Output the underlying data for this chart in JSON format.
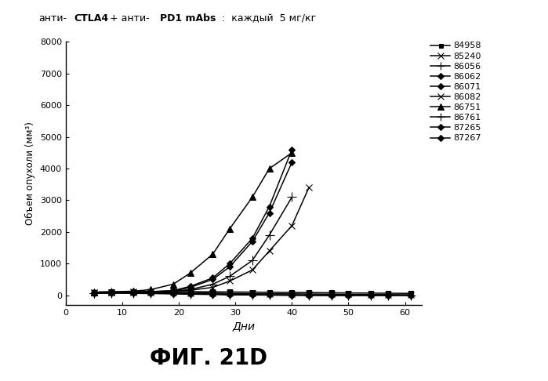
{
  "title_parts": [
    {
      "text": "анти-CTLA4 + анти- PD1 mAbs:  каждый  5 мг/кг",
      "bold": false
    }
  ],
  "xlabel": "Дни",
  "ylabel": "Объем опухоли (мм³)",
  "figure_label": "ФИГ. 21D",
  "xlim": [
    0,
    63
  ],
  "ylim": [
    -300,
    8000
  ],
  "xticks": [
    0,
    10,
    20,
    30,
    40,
    50,
    60
  ],
  "yticks": [
    0,
    1000,
    2000,
    3000,
    4000,
    5000,
    6000,
    7000,
    8000
  ],
  "series": [
    {
      "label": "84958",
      "marker": "s",
      "x": [
        5,
        8,
        12,
        15,
        19,
        22,
        26,
        29,
        33,
        36,
        40,
        43,
        47,
        50,
        54,
        57,
        61
      ],
      "y": [
        100,
        110,
        105,
        115,
        120,
        115,
        110,
        105,
        100,
        95,
        90,
        85,
        80,
        75,
        70,
        65,
        60
      ]
    },
    {
      "label": "85240",
      "marker": "x",
      "x": [
        5,
        8,
        12,
        15,
        19,
        22,
        26,
        29,
        33,
        36,
        40,
        43,
        47,
        50,
        54,
        57,
        61
      ],
      "y": [
        80,
        90,
        85,
        90,
        80,
        75,
        70,
        60,
        55,
        50,
        45,
        40,
        35,
        30,
        25,
        20,
        15
      ]
    },
    {
      "label": "86056",
      "marker": "+",
      "x": [
        5,
        8,
        12,
        15,
        19,
        22,
        26,
        29,
        33,
        36,
        40
      ],
      "y": [
        60,
        70,
        80,
        100,
        120,
        180,
        350,
        600,
        1100,
        1900,
        3100
      ]
    },
    {
      "label": "86062",
      "marker": "D",
      "x": [
        5,
        8,
        12,
        15,
        19,
        22,
        26,
        29,
        33,
        36,
        40
      ],
      "y": [
        80,
        90,
        100,
        110,
        150,
        280,
        550,
        1000,
        1800,
        2800,
        4600
      ]
    },
    {
      "label": "86071",
      "marker": "D",
      "x": [
        5,
        8,
        12,
        15,
        19,
        22,
        26,
        29,
        33,
        36,
        40
      ],
      "y": [
        70,
        85,
        95,
        105,
        130,
        250,
        500,
        900,
        1700,
        2600,
        4200
      ]
    },
    {
      "label": "86082",
      "marker": "x",
      "x": [
        5,
        8,
        12,
        15,
        19,
        22,
        26,
        29,
        33,
        36,
        40,
        43
      ],
      "y": [
        90,
        100,
        110,
        120,
        140,
        160,
        250,
        450,
        800,
        1400,
        2200,
        3400
      ]
    },
    {
      "label": "86751",
      "marker": "^",
      "x": [
        5,
        8,
        12,
        15,
        19,
        22,
        26,
        29,
        33,
        36,
        40
      ],
      "y": [
        100,
        110,
        130,
        180,
        350,
        700,
        1300,
        2100,
        3100,
        4000,
        4500
      ]
    },
    {
      "label": "86761",
      "marker": "+",
      "x": [
        5,
        8,
        12,
        15,
        19,
        22,
        26,
        29,
        33,
        36,
        40,
        43,
        47,
        50,
        54,
        57,
        61
      ],
      "y": [
        70,
        80,
        70,
        65,
        55,
        45,
        35,
        25,
        15,
        10,
        5,
        2,
        0,
        0,
        0,
        0,
        0
      ]
    },
    {
      "label": "87265",
      "marker": "D",
      "x": [
        5,
        8,
        12,
        15,
        19,
        22,
        26,
        29,
        33,
        36,
        40,
        43,
        47,
        50,
        54,
        57,
        61
      ],
      "y": [
        60,
        70,
        60,
        55,
        45,
        35,
        25,
        15,
        10,
        5,
        2,
        0,
        0,
        0,
        0,
        0,
        0
      ]
    },
    {
      "label": "87267",
      "marker": "D",
      "x": [
        5,
        8,
        12,
        15,
        19,
        22,
        26,
        29,
        33,
        36,
        40,
        43,
        47,
        50,
        54,
        57,
        61
      ],
      "y": [
        85,
        95,
        85,
        75,
        60,
        50,
        40,
        30,
        20,
        12,
        8,
        3,
        0,
        0,
        0,
        0,
        0
      ]
    }
  ],
  "line_color": "#000000",
  "bg_color": "#ffffff"
}
